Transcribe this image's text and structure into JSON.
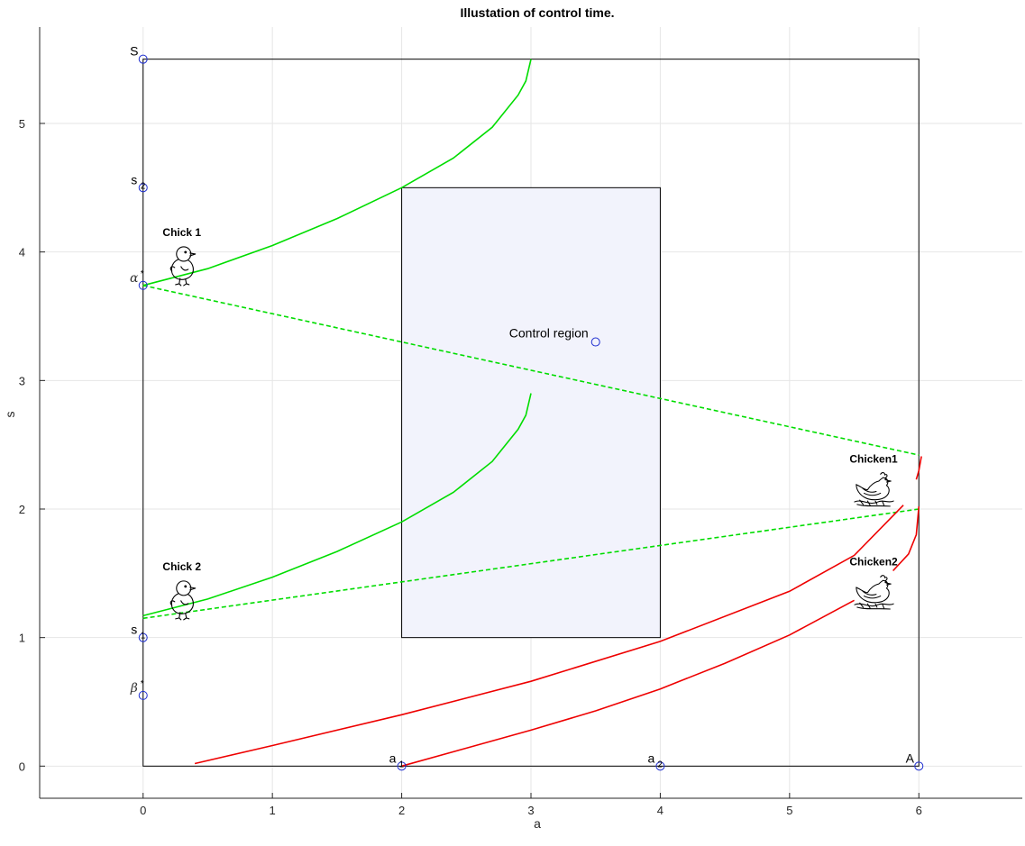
{
  "chart_data": {
    "type": "line",
    "title": "Illustation of control time.",
    "xlabel": "a",
    "ylabel": "s",
    "xlim": [
      -0.8,
      6.8
    ],
    "ylim": [
      -0.25,
      5.75
    ],
    "xticks": [
      0,
      1,
      2,
      3,
      4,
      5,
      6
    ],
    "yticks": [
      0,
      1,
      2,
      3,
      4,
      5
    ],
    "xtick_labels": [
      "0",
      "1",
      "2",
      "3",
      "4",
      "5",
      "6"
    ],
    "ytick_labels": [
      "0",
      "1",
      "2",
      "3",
      "4",
      "5"
    ],
    "grid": true,
    "domain_box": {
      "a": [
        0,
        6
      ],
      "s": [
        0,
        5.5
      ]
    },
    "control_region": {
      "a": [
        2,
        4
      ],
      "s": [
        1,
        4.5
      ],
      "label": "Control region",
      "label_point": {
        "a": 3.5,
        "s": 3.3
      }
    },
    "marked_points": [
      {
        "id": "S",
        "label": "S",
        "sub": "",
        "a": 0,
        "s": 5.5
      },
      {
        "id": "s2",
        "label": "s",
        "sub": "2",
        "a": 0,
        "s": 4.5
      },
      {
        "id": "alpha",
        "label": "α",
        "sub": "*",
        "a": 0,
        "s": 3.74,
        "greek": true
      },
      {
        "id": "s1",
        "label": "s",
        "sub": "1",
        "a": 0,
        "s": 1.0
      },
      {
        "id": "beta",
        "label": "β",
        "sub": "*",
        "a": 0,
        "s": 0.55,
        "greek": true
      },
      {
        "id": "a1",
        "label": "a",
        "sub": "1",
        "a": 2,
        "s": 0
      },
      {
        "id": "a2",
        "label": "a",
        "sub": "2",
        "a": 4,
        "s": 0
      },
      {
        "id": "A",
        "label": "A",
        "sub": "",
        "a": 6,
        "s": 0
      }
    ],
    "series": [
      {
        "id": "green-upper",
        "color": "#00dd00",
        "style": "solid",
        "x": [
          0,
          0.5,
          1.0,
          1.5,
          2.0,
          2.4,
          2.7,
          2.9,
          2.96,
          3.0
        ],
        "y": [
          3.74,
          3.87,
          4.05,
          4.26,
          4.5,
          4.73,
          4.97,
          5.22,
          5.33,
          5.5
        ]
      },
      {
        "id": "green-lower",
        "color": "#00dd00",
        "style": "solid",
        "x": [
          0,
          0.5,
          1.0,
          1.5,
          2.0,
          2.4,
          2.7,
          2.9,
          2.96,
          3.0
        ],
        "y": [
          1.17,
          1.3,
          1.47,
          1.67,
          1.9,
          2.13,
          2.37,
          2.62,
          2.73,
          2.9
        ]
      },
      {
        "id": "green-dashed-upper",
        "color": "#00dd00",
        "style": "dashed",
        "x": [
          0,
          6
        ],
        "y": [
          3.74,
          2.42
        ]
      },
      {
        "id": "green-dashed-lower",
        "color": "#00dd00",
        "style": "dashed",
        "x": [
          0,
          6
        ],
        "y": [
          1.15,
          2.0
        ]
      },
      {
        "id": "red-upper",
        "color": "#ee0000",
        "style": "solid",
        "x": [
          0.4,
          1.0,
          2.0,
          3.0,
          4.0,
          5.0,
          5.5,
          5.88
        ],
        "y": [
          0.02,
          0.16,
          0.4,
          0.66,
          0.97,
          1.36,
          1.64,
          2.03
        ]
      },
      {
        "id": "red-lower",
        "color": "#ee0000",
        "style": "solid",
        "x": [
          2.0,
          2.5,
          3.0,
          3.5,
          4.0,
          4.5,
          5.0,
          5.5
        ],
        "y": [
          0.0,
          0.14,
          0.28,
          0.43,
          0.6,
          0.8,
          1.02,
          1.29
        ]
      },
      {
        "id": "red-tail-upper",
        "color": "#ee0000",
        "style": "solid",
        "x": [
          5.98,
          6.0,
          6.02
        ],
        "y": [
          2.23,
          2.3,
          2.41
        ]
      },
      {
        "id": "red-tail-lower",
        "color": "#ee0000",
        "style": "solid",
        "x": [
          5.8,
          5.92,
          5.98,
          6.0
        ],
        "y": [
          1.52,
          1.65,
          1.8,
          2.02
        ]
      }
    ],
    "annotations": [
      {
        "id": "chick1",
        "text": "Chick 1",
        "kind": "chick",
        "a": 0.3,
        "s": 3.9
      },
      {
        "id": "chick2",
        "text": "Chick 2",
        "kind": "chick",
        "a": 0.3,
        "s": 1.3
      },
      {
        "id": "chicken1",
        "text": "Chicken1",
        "kind": "hen",
        "a": 5.65,
        "s": 2.15
      },
      {
        "id": "chicken2",
        "text": "Chicken2",
        "kind": "hen",
        "a": 5.65,
        "s": 1.35
      }
    ]
  }
}
